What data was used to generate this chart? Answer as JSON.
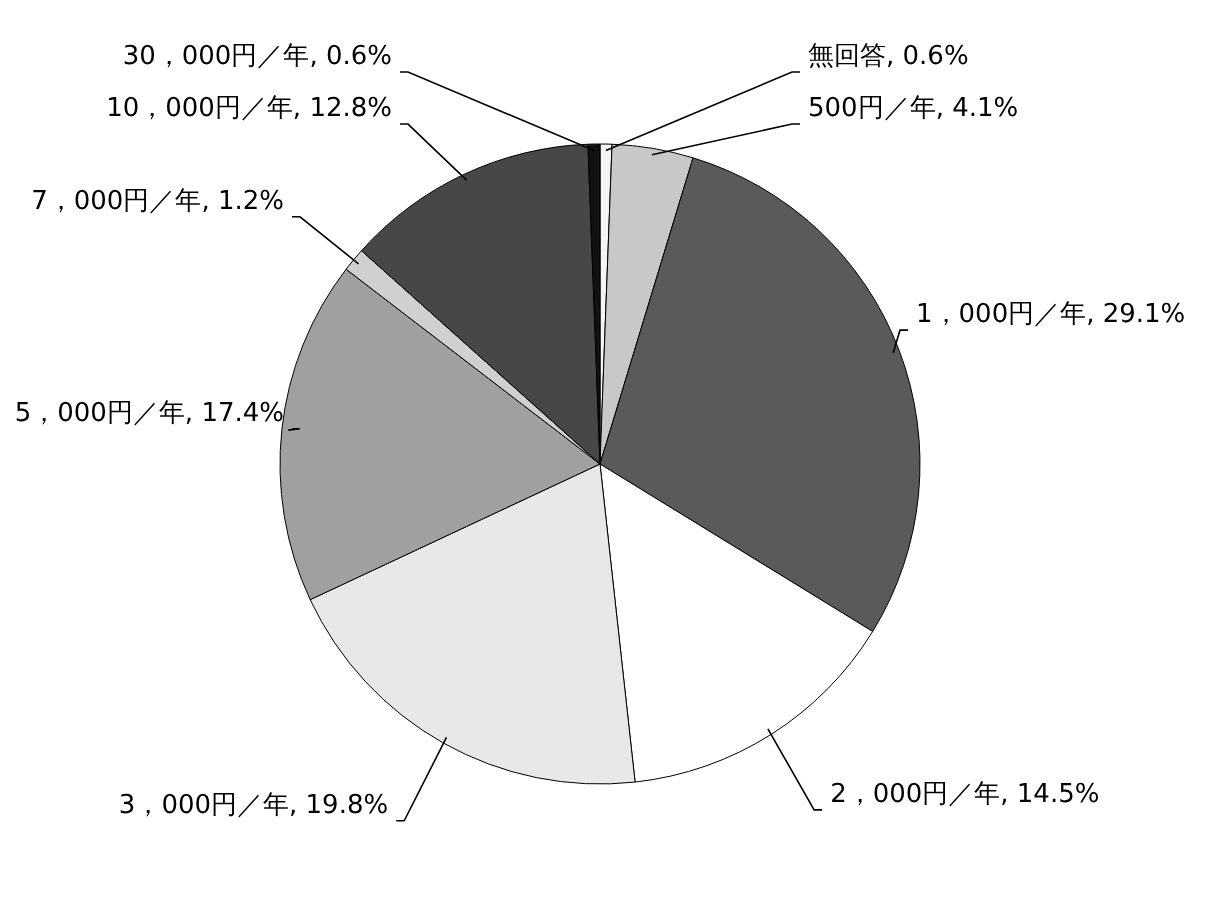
{
  "chart_data": {
    "type": "pie",
    "categories": [
      "無回答",
      "500円／年",
      "1，000円／年",
      "2，000円／年",
      "3，000円／年",
      "5，000円／年",
      "7，000円／年",
      "10，000円／年",
      "30，000円／年"
    ],
    "values": [
      0.6,
      4.1,
      29.1,
      14.5,
      19.8,
      17.4,
      1.2,
      12.8,
      0.6
    ],
    "value_labels": [
      "0.6%",
      "4.1%",
      "29.1%",
      "14.5%",
      "19.8%",
      "17.4%",
      "1.2%",
      "12.8%",
      "0.6%"
    ],
    "colors": [
      "#f4f4f4",
      "#c8c8c8",
      "#5a5a5a",
      "#ffffff",
      "#e8e8e8",
      "#a0a0a0",
      "#d0d0d0",
      "#474747",
      "#111111"
    ]
  }
}
